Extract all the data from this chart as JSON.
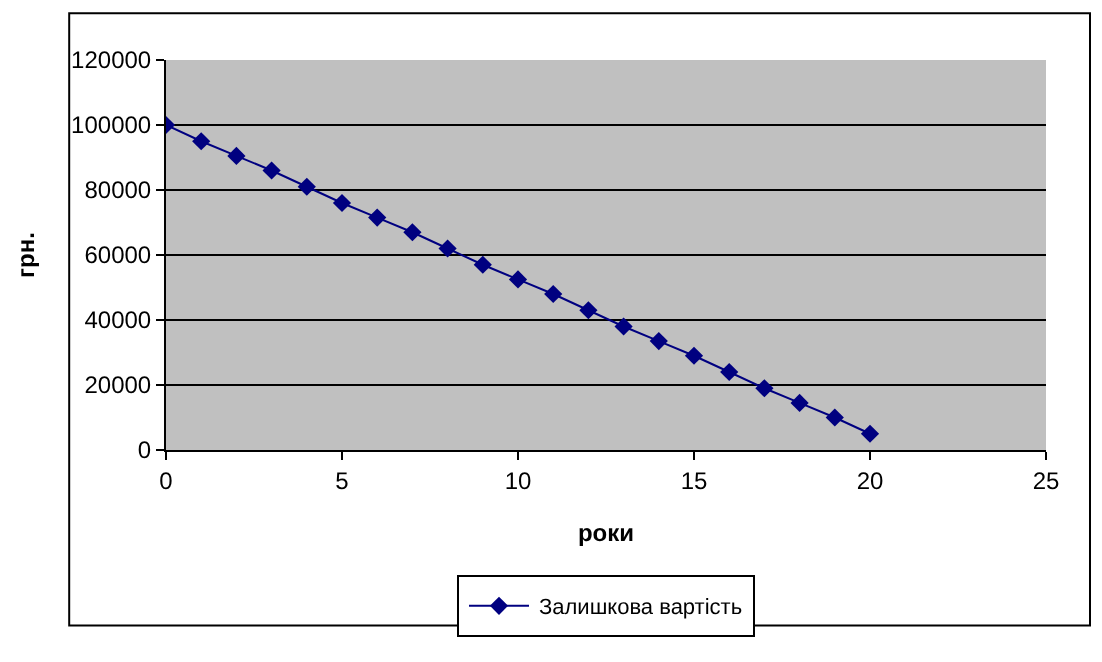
{
  "chart_data": {
    "type": "line",
    "xlabel": "роки",
    "ylabel": "грн.",
    "x": [
      0,
      1,
      2,
      3,
      4,
      5,
      6,
      7,
      8,
      9,
      10,
      11,
      12,
      13,
      14,
      15,
      16,
      17,
      18,
      19,
      20
    ],
    "series": [
      {
        "name": "Залишкова вартість",
        "color": "#000080",
        "values": [
          100000,
          95000,
          90500,
          86000,
          81000,
          76000,
          71500,
          67000,
          62000,
          57000,
          52500,
          48000,
          43000,
          38000,
          33500,
          29000,
          24000,
          19000,
          14500,
          10000,
          5000
        ]
      }
    ],
    "xlim": [
      0,
      25
    ],
    "xticks": [
      0,
      5,
      10,
      15,
      20,
      25
    ],
    "ylim": [
      0,
      120000
    ],
    "yticks": [
      0,
      20000,
      40000,
      60000,
      80000,
      100000,
      120000
    ],
    "grid": "y",
    "legend": "bottom",
    "marker": "diamond",
    "line_style": "solid"
  }
}
